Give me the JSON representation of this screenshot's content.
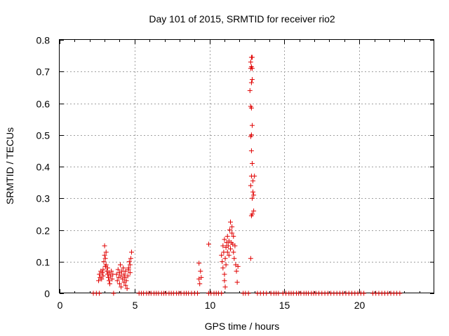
{
  "chart_data": {
    "type": "scatter",
    "title": "Day 101 of 2015, SRMTID for receiver rio2",
    "xlabel": "GPS time / hours",
    "ylabel": "SRMTID / TECUs",
    "xlim": [
      0,
      25
    ],
    "ylim": [
      0,
      0.8
    ],
    "x_ticks": [
      "0",
      "5",
      "10",
      "15",
      "20"
    ],
    "x_tick_values": [
      0,
      5,
      10,
      15,
      20
    ],
    "y_ticks": [
      "0",
      "0.1",
      "0.2",
      "0.3",
      "0.4",
      "0.5",
      "0.6",
      "0.7",
      "0.8"
    ],
    "y_tick_values": [
      0,
      0.1,
      0.2,
      0.3,
      0.4,
      0.5,
      0.6,
      0.7,
      0.8
    ],
    "grid": true,
    "marker_color": "#e00000",
    "series": [
      {
        "name": "SRMTID",
        "points": [
          [
            2.25,
            0
          ],
          [
            2.45,
            0
          ],
          [
            2.65,
            0
          ],
          [
            3.6,
            0
          ],
          [
            5.3,
            0
          ],
          [
            5.45,
            0
          ],
          [
            5.6,
            0
          ],
          [
            5.8,
            0
          ],
          [
            5.95,
            0
          ],
          [
            6.1,
            0
          ],
          [
            6.3,
            0
          ],
          [
            6.45,
            0
          ],
          [
            6.6,
            0
          ],
          [
            6.8,
            0
          ],
          [
            6.95,
            0
          ],
          [
            7.1,
            0
          ],
          [
            7.3,
            0
          ],
          [
            7.45,
            0
          ],
          [
            7.6,
            0
          ],
          [
            7.8,
            0
          ],
          [
            7.95,
            0
          ],
          [
            8.1,
            0
          ],
          [
            8.3,
            0
          ],
          [
            8.45,
            0
          ],
          [
            8.6,
            0
          ],
          [
            8.8,
            0
          ],
          [
            9.0,
            0
          ],
          [
            9.2,
            0
          ],
          [
            9.95,
            0
          ],
          [
            10.1,
            0
          ],
          [
            10.3,
            0
          ],
          [
            10.45,
            0
          ],
          [
            10.6,
            0
          ],
          [
            10.8,
            0
          ],
          [
            12.25,
            0
          ],
          [
            12.4,
            0
          ],
          [
            12.6,
            0
          ],
          [
            13.2,
            0
          ],
          [
            13.4,
            0
          ],
          [
            13.6,
            0
          ],
          [
            13.8,
            0
          ],
          [
            14.1,
            0
          ],
          [
            14.3,
            0
          ],
          [
            14.45,
            0
          ],
          [
            14.6,
            0
          ],
          [
            14.9,
            0
          ],
          [
            15.1,
            0
          ],
          [
            15.3,
            0
          ],
          [
            15.45,
            0
          ],
          [
            15.6,
            0
          ],
          [
            15.8,
            0
          ],
          [
            15.95,
            0
          ],
          [
            16.1,
            0
          ],
          [
            16.3,
            0
          ],
          [
            16.45,
            0
          ],
          [
            16.6,
            0
          ],
          [
            16.8,
            0
          ],
          [
            16.95,
            0
          ],
          [
            17.1,
            0
          ],
          [
            17.3,
            0
          ],
          [
            17.5,
            0
          ],
          [
            17.7,
            0
          ],
          [
            17.9,
            0
          ],
          [
            18.1,
            0
          ],
          [
            18.3,
            0
          ],
          [
            18.5,
            0
          ],
          [
            18.7,
            0
          ],
          [
            18.9,
            0
          ],
          [
            19.1,
            0
          ],
          [
            19.3,
            0
          ],
          [
            19.5,
            0
          ],
          [
            19.7,
            0
          ],
          [
            19.9,
            0
          ],
          [
            20.1,
            0
          ],
          [
            20.3,
            0
          ],
          [
            20.9,
            0
          ],
          [
            21.1,
            0
          ],
          [
            21.3,
            0
          ],
          [
            21.5,
            0
          ],
          [
            21.7,
            0
          ],
          [
            21.9,
            0
          ],
          [
            22.1,
            0
          ],
          [
            22.3,
            0
          ],
          [
            22.5,
            0
          ],
          [
            22.7,
            0
          ],
          [
            2.6,
            0.04
          ],
          [
            2.65,
            0.06
          ],
          [
            2.7,
            0.05
          ],
          [
            2.75,
            0.07
          ],
          [
            2.8,
            0.045
          ],
          [
            2.85,
            0.065
          ],
          [
            2.9,
            0.055
          ],
          [
            2.95,
            0.1
          ],
          [
            3.0,
            0.12
          ],
          [
            3.0,
            0.15
          ],
          [
            3.05,
            0.11
          ],
          [
            3.1,
            0.13
          ],
          [
            3.1,
            0.09
          ],
          [
            3.15,
            0.07
          ],
          [
            3.2,
            0.06
          ],
          [
            3.2,
            0.08
          ],
          [
            3.25,
            0.05
          ],
          [
            3.3,
            0.04
          ],
          [
            3.3,
            0.065
          ],
          [
            3.35,
            0.03
          ],
          [
            3.4,
            0.055
          ],
          [
            3.45,
            0.07
          ],
          [
            3.5,
            0.045
          ],
          [
            3.55,
            0.06
          ],
          [
            2.9,
            0.075
          ],
          [
            3.05,
            0.085
          ],
          [
            3.8,
            0.06
          ],
          [
            3.85,
            0.04
          ],
          [
            3.9,
            0.075
          ],
          [
            3.95,
            0.05
          ],
          [
            4.0,
            0.03
          ],
          [
            4.0,
            0.065
          ],
          [
            4.05,
            0.09
          ],
          [
            4.1,
            0.055
          ],
          [
            4.1,
            0.02
          ],
          [
            4.15,
            0.07
          ],
          [
            4.2,
            0.045
          ],
          [
            4.25,
            0.08
          ],
          [
            4.3,
            0.035
          ],
          [
            4.3,
            0.06
          ],
          [
            4.35,
            0.05
          ],
          [
            4.4,
            0.025
          ],
          [
            4.4,
            0.07
          ],
          [
            4.45,
            0.04
          ],
          [
            4.5,
            0.015
          ],
          [
            4.55,
            0.055
          ],
          [
            4.6,
            0.08
          ],
          [
            4.65,
            0.1
          ],
          [
            4.7,
            0.09
          ],
          [
            4.75,
            0.11
          ],
          [
            4.8,
            0.13
          ],
          [
            4.7,
            0.065
          ],
          [
            4.6,
            0.075
          ],
          [
            9.3,
            0.095
          ],
          [
            9.3,
            0.045
          ],
          [
            9.35,
            0.03
          ],
          [
            9.4,
            0.07
          ],
          [
            9.45,
            0.05
          ],
          [
            9.95,
            0.155
          ],
          [
            10.8,
            0.12
          ],
          [
            10.85,
            0.1
          ],
          [
            10.9,
            0.08
          ],
          [
            10.9,
            0.15
          ],
          [
            10.95,
            0.13
          ],
          [
            11.0,
            0.17
          ],
          [
            11.0,
            0.06
          ],
          [
            11.05,
            0.11
          ],
          [
            11.1,
            0.145
          ],
          [
            11.1,
            0.09
          ],
          [
            11.15,
            0.16
          ],
          [
            11.2,
            0.13
          ],
          [
            11.2,
            0.18
          ],
          [
            11.25,
            0.15
          ],
          [
            11.3,
            0.12
          ],
          [
            11.3,
            0.165
          ],
          [
            11.35,
            0.2
          ],
          [
            11.4,
            0.225
          ],
          [
            11.4,
            0.14
          ],
          [
            11.45,
            0.16
          ],
          [
            11.5,
            0.19
          ],
          [
            11.5,
            0.21
          ],
          [
            11.55,
            0.155
          ],
          [
            11.6,
            0.18
          ],
          [
            11.6,
            0.13
          ],
          [
            11.65,
            0.11
          ],
          [
            11.7,
            0.15
          ],
          [
            11.75,
            0.09
          ],
          [
            11.8,
            0.07
          ],
          [
            11.85,
            0.035
          ],
          [
            11.9,
            0.085
          ],
          [
            11.0,
            0.04
          ],
          [
            11.05,
            0.02
          ],
          [
            12.75,
            0.11
          ],
          [
            12.8,
            0.245
          ],
          [
            12.85,
            0.25
          ],
          [
            12.75,
            0.34
          ],
          [
            12.8,
            0.37
          ],
          [
            12.85,
            0.3
          ],
          [
            12.9,
            0.32
          ],
          [
            12.95,
            0.26
          ],
          [
            13.0,
            0.37
          ],
          [
            12.85,
            0.41
          ],
          [
            12.8,
            0.45
          ],
          [
            12.75,
            0.495
          ],
          [
            12.8,
            0.5
          ],
          [
            12.85,
            0.53
          ],
          [
            12.75,
            0.59
          ],
          [
            12.8,
            0.585
          ],
          [
            12.7,
            0.64
          ],
          [
            12.8,
            0.665
          ],
          [
            12.85,
            0.675
          ],
          [
            12.75,
            0.71
          ],
          [
            12.8,
            0.715
          ],
          [
            12.85,
            0.71
          ],
          [
            12.75,
            0.73
          ],
          [
            12.8,
            0.745
          ],
          [
            12.85,
            0.745
          ],
          [
            12.9,
            0.355
          ],
          [
            12.95,
            0.31
          ]
        ]
      }
    ]
  }
}
